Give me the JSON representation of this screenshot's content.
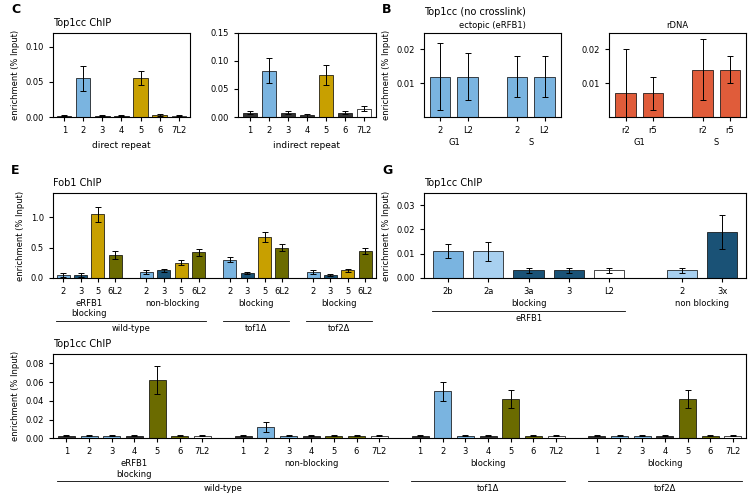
{
  "chart_data": [
    {
      "type": "bar",
      "panel": "B",
      "title": "Top1cc (no crosslink)",
      "subtitle": "ectopic (eRFB1)",
      "ylabel": "enrichment (% Input)",
      "ylim": [
        0,
        0.025
      ],
      "yticks": [
        0.01,
        0.02
      ],
      "groups": [
        {
          "label": "G1",
          "categories": [
            "2",
            "L2"
          ],
          "values": [
            0.012,
            0.012
          ],
          "errors": [
            0.01,
            0.007
          ],
          "colors": [
            "#7ab4e0",
            "#7ab4e0"
          ]
        },
        {
          "label": "S",
          "categories": [
            "2",
            "L2"
          ],
          "values": [
            0.012,
            0.012
          ],
          "errors": [
            0.006,
            0.006
          ],
          "colors": [
            "#7ab4e0",
            "#7ab4e0"
          ]
        }
      ]
    },
    {
      "type": "bar",
      "subtitle": "rDNA",
      "ylim": [
        0,
        0.025
      ],
      "yticks": [
        0.01,
        0.02
      ],
      "groups": [
        {
          "label": "G1",
          "categories": [
            "r2",
            "r5"
          ],
          "values": [
            0.007,
            0.007
          ],
          "errors": [
            0.013,
            0.005
          ],
          "colors": [
            "#e05c3a",
            "#e05c3a"
          ]
        },
        {
          "label": "S",
          "categories": [
            "r2",
            "r5"
          ],
          "values": [
            0.014,
            0.014
          ],
          "errors": [
            0.009,
            0.004
          ],
          "colors": [
            "#e05c3a",
            "#e05c3a"
          ]
        }
      ]
    },
    {
      "type": "bar",
      "panel": "C",
      "title": "Top1cc ChIP",
      "ylabel": "enrichment (% Input)",
      "xlabel": "direct repeat",
      "ylim": [
        0,
        0.12
      ],
      "yticks": [
        {
          "value": 0,
          "label": "0.00"
        },
        0.05,
        {
          "value": 0.1,
          "label": "0.10"
        }
      ],
      "groups": [
        {
          "categories": [
            "1",
            "2",
            "3",
            "4",
            "5",
            "6",
            "7L2"
          ],
          "values": [
            0.002,
            0.055,
            0.002,
            0.002,
            0.055,
            0.003,
            0.002
          ],
          "errors": [
            0.001,
            0.018,
            0.001,
            0.001,
            0.01,
            0.001,
            0.001
          ],
          "colors": [
            "#333333",
            "#7ab4e0",
            "#333333",
            "#333333",
            "#c8a000",
            "#c8a000",
            "#ffffff"
          ]
        }
      ]
    },
    {
      "type": "bar",
      "xlabel": "indirect repeat",
      "ylim": [
        0,
        0.15
      ],
      "yticks": [
        {
          "value": 0,
          "label": "0.00"
        },
        0.05,
        {
          "value": 0.1,
          "label": "0.10"
        },
        0.15
      ],
      "groups": [
        {
          "categories": [
            "1",
            "2",
            "3",
            "4",
            "5",
            "6",
            "7L2"
          ],
          "values": [
            0.008,
            0.082,
            0.008,
            0.003,
            0.075,
            0.008,
            0.015
          ],
          "errors": [
            0.003,
            0.022,
            0.003,
            0.002,
            0.018,
            0.003,
            0.005
          ],
          "colors": [
            "#333333",
            "#7ab4e0",
            "#333333",
            "#333333",
            "#c8a000",
            "#333333",
            "#ffffff"
          ]
        }
      ]
    },
    {
      "type": "bar",
      "panel": "E",
      "title": "Fob1 ChIP",
      "ylabel": "enrichment (% Input)",
      "ylim": [
        0,
        1.4
      ],
      "yticks": [
        {
          "value": 0,
          "label": "0.0"
        },
        0.5,
        {
          "value": 1,
          "label": "1.0"
        }
      ],
      "groups": [
        {
          "label": "eRFB1\nblocking",
          "strain": "wild-type",
          "categories": [
            "2",
            "3",
            "5",
            "6L2"
          ],
          "values": [
            0.05,
            0.05,
            1.05,
            0.38
          ],
          "errors": [
            0.03,
            0.03,
            0.12,
            0.07
          ],
          "colors": [
            "#7ab4e0",
            "#1a5276",
            "#c8a000",
            "#6b6b00"
          ]
        },
        {
          "label": "non-blocking",
          "strain": "wild-type",
          "categories": [
            "2",
            "3",
            "5",
            "6L2"
          ],
          "values": [
            0.1,
            0.12,
            0.25,
            0.42
          ],
          "errors": [
            0.03,
            0.02,
            0.04,
            0.06
          ],
          "colors": [
            "#7ab4e0",
            "#1a5276",
            "#c8a000",
            "#6b6b00"
          ]
        },
        {
          "label": "blocking",
          "strain": "tof1Δ",
          "categories": [
            "2",
            "3",
            "5",
            "6L2"
          ],
          "values": [
            0.3,
            0.08,
            0.68,
            0.5
          ],
          "errors": [
            0.04,
            0.02,
            0.08,
            0.06
          ],
          "colors": [
            "#7ab4e0",
            "#1a5276",
            "#c8a000",
            "#6b6b00"
          ]
        },
        {
          "label": "blocking",
          "strain": "tof2Δ",
          "categories": [
            "2",
            "3",
            "5",
            "6L2"
          ],
          "values": [
            0.1,
            0.05,
            0.12,
            0.45
          ],
          "errors": [
            0.03,
            0.02,
            0.03,
            0.05
          ],
          "colors": [
            "#7ab4e0",
            "#1a5276",
            "#c8a000",
            "#6b6b00"
          ]
        }
      ]
    },
    {
      "type": "bar",
      "title": "Top1cc ChIP",
      "ylabel": "enrichment (% Input)",
      "ylim": [
        0,
        0.09
      ],
      "yticks": [
        {
          "value": 0,
          "label": "0.00"
        },
        0.02,
        0.04,
        0.06,
        0.08
      ],
      "groups": [
        {
          "label": "eRFB1\nblocking",
          "strain": "wild-type",
          "categories": [
            "1",
            "2",
            "3",
            "4",
            "5",
            "6",
            "7L2"
          ],
          "values": [
            0.003,
            0.003,
            0.003,
            0.003,
            0.062,
            0.003,
            0.003
          ],
          "errors": [
            0.001,
            0.001,
            0.001,
            0.001,
            0.015,
            0.001,
            0.001
          ],
          "colors": [
            "#333333",
            "#7ab4e0",
            "#7ab4e0",
            "#333333",
            "#6b6b00",
            "#6b6b00",
            "#ffffff"
          ]
        },
        {
          "label": "non-blocking",
          "strain": "wild-type",
          "categories": [
            "1",
            "2",
            "3",
            "4",
            "5",
            "6",
            "7L2"
          ],
          "values": [
            0.003,
            0.012,
            0.003,
            0.003,
            0.003,
            0.003,
            0.003
          ],
          "errors": [
            0.001,
            0.005,
            0.001,
            0.001,
            0.001,
            0.001,
            0.001
          ],
          "colors": [
            "#333333",
            "#7ab4e0",
            "#7ab4e0",
            "#333333",
            "#6b6b00",
            "#6b6b00",
            "#ffffff"
          ]
        },
        {
          "label": "blocking",
          "strain": "tof1Δ",
          "categories": [
            "1",
            "2",
            "3",
            "4",
            "5",
            "6",
            "7L2"
          ],
          "values": [
            0.003,
            0.05,
            0.003,
            0.003,
            0.042,
            0.003,
            0.003
          ],
          "errors": [
            0.001,
            0.01,
            0.001,
            0.001,
            0.01,
            0.001,
            0.001
          ],
          "colors": [
            "#333333",
            "#7ab4e0",
            "#7ab4e0",
            "#333333",
            "#6b6b00",
            "#6b6b00",
            "#ffffff"
          ]
        },
        {
          "label": "blocking",
          "strain": "tof2Δ",
          "categories": [
            "1",
            "2",
            "3",
            "4",
            "5",
            "6",
            "7L2"
          ],
          "values": [
            0.003,
            0.003,
            0.003,
            0.003,
            0.042,
            0.003,
            0.003
          ],
          "errors": [
            0.001,
            0.001,
            0.001,
            0.001,
            0.01,
            0.001,
            0.001
          ],
          "colors": [
            "#333333",
            "#7ab4e0",
            "#7ab4e0",
            "#333333",
            "#6b6b00",
            "#6b6b00",
            "#ffffff"
          ]
        }
      ]
    },
    {
      "type": "bar",
      "panel": "G",
      "title": "Top1cc ChIP",
      "ylabel": "enrichment (% Input)",
      "ylim": [
        0,
        0.035
      ],
      "yticks": [
        {
          "value": 0,
          "label": "0.00"
        },
        0.01,
        0.02,
        0.03
      ],
      "groups": [
        {
          "label": "blocking",
          "strain": "eRFB1",
          "categories": [
            "2b",
            "2a",
            "3a",
            "3",
            "L2"
          ],
          "values": [
            0.011,
            0.011,
            0.003,
            0.003,
            0.003
          ],
          "errors": [
            0.003,
            0.004,
            0.001,
            0.001,
            0.001
          ],
          "colors": [
            "#7ab4e0",
            "#a8d0f0",
            "#1a5276",
            "#1a5276",
            "#ffffff"
          ]
        },
        {
          "label": "non blocking",
          "categories": [
            "2",
            "3x"
          ],
          "values": [
            0.003,
            0.019
          ],
          "errors": [
            0.001,
            0.007
          ],
          "colors": [
            "#a8d0f0",
            "#1a5276"
          ]
        }
      ]
    }
  ]
}
